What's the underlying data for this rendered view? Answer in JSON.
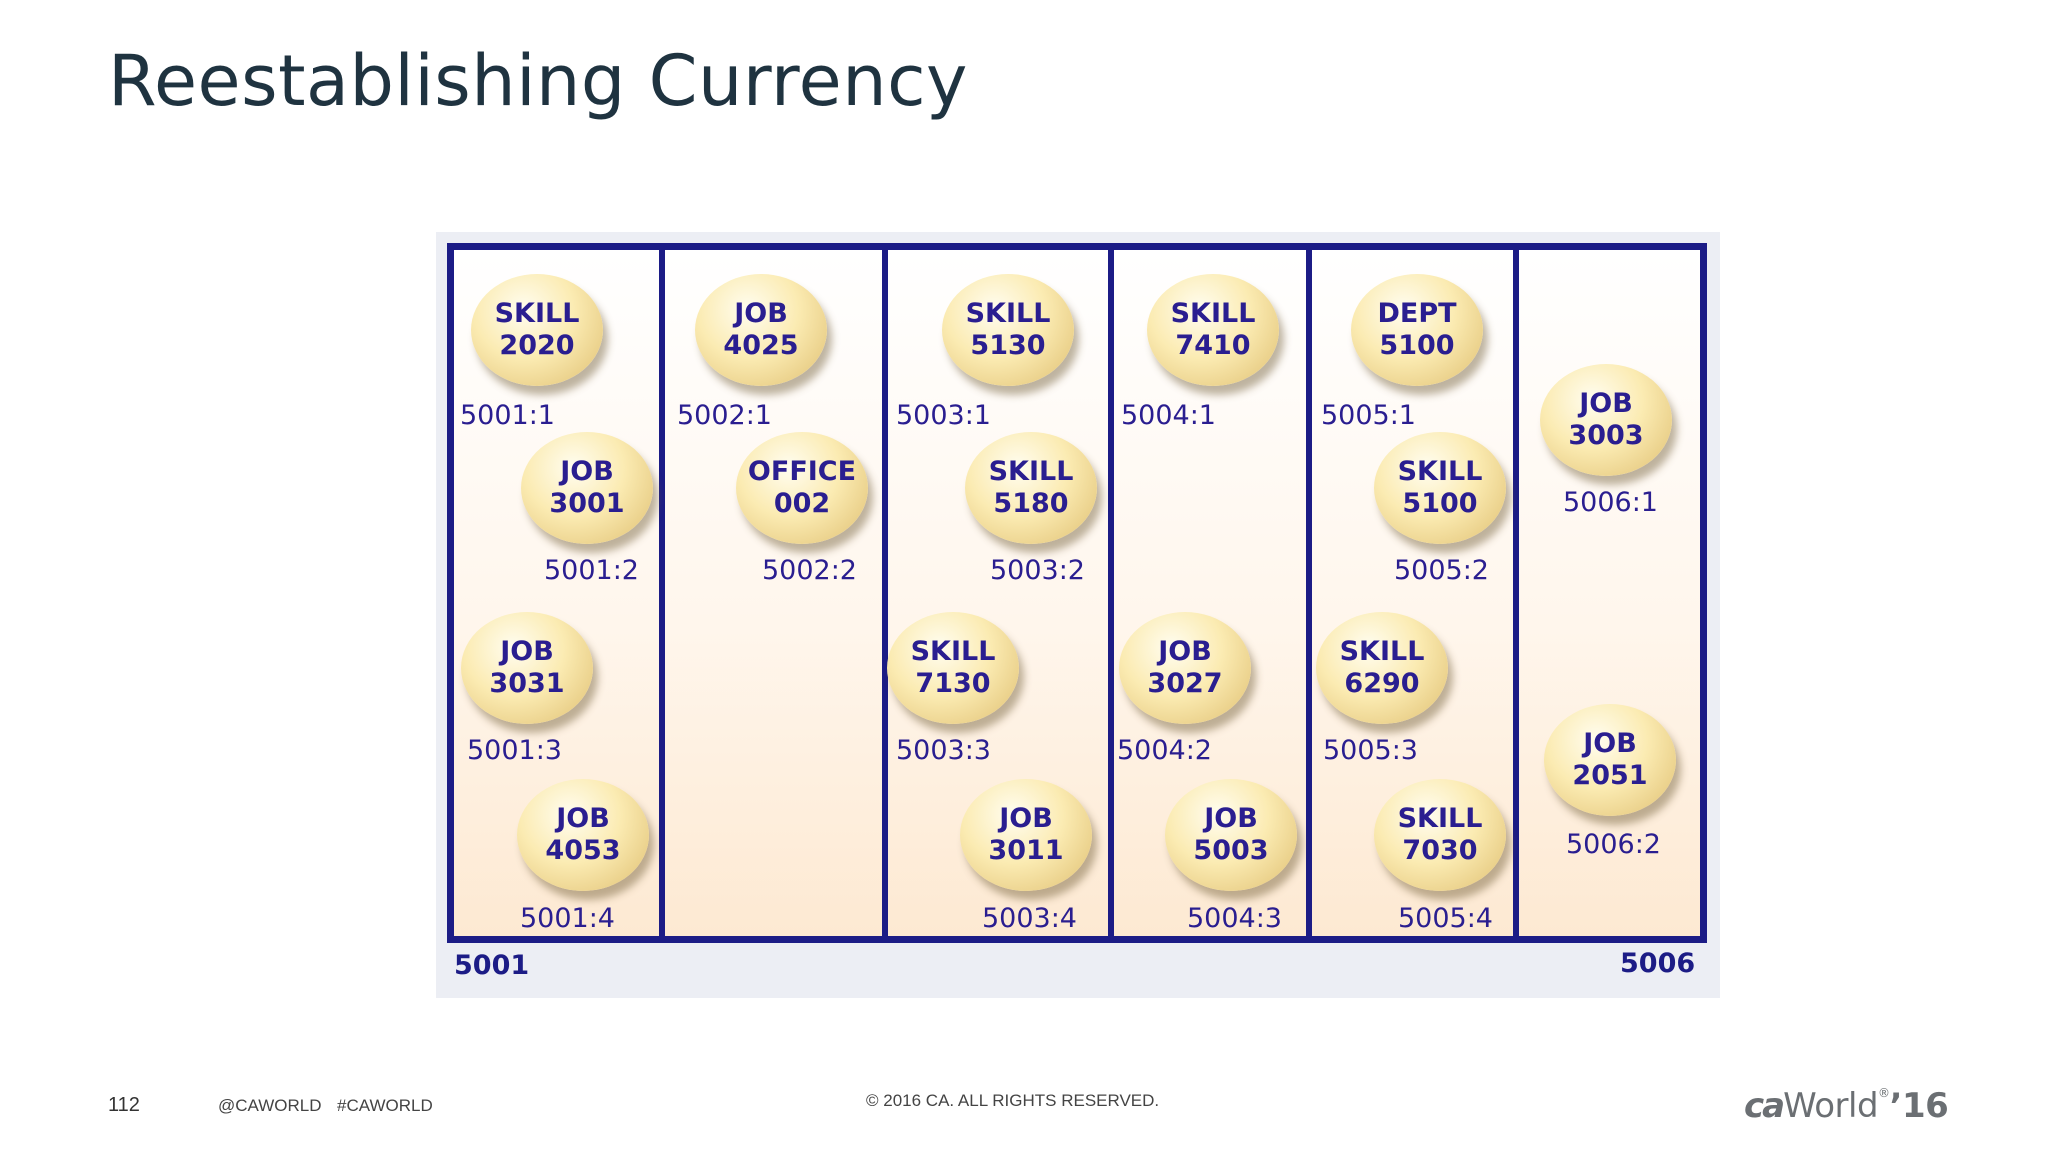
{
  "slide": {
    "title": "Reestablishing Currency",
    "page_number": "112",
    "handle": "@CAWORLD",
    "hashtag": "#CAWORLD",
    "copyright": "© 2016 CA. ALL RIGHTS RESERVED.",
    "logo": {
      "ca": "ca",
      "world": "World",
      "tm": "®",
      "year": "’16"
    }
  },
  "diagram": {
    "first_page": "5001",
    "last_page": "5006",
    "records": [
      {
        "type": "SKILL",
        "id": "2020",
        "dbkey": "5001:1"
      },
      {
        "type": "JOB",
        "id": "3001",
        "dbkey": "5001:2"
      },
      {
        "type": "JOB",
        "id": "3031",
        "dbkey": "5001:3"
      },
      {
        "type": "JOB",
        "id": "4053",
        "dbkey": "5001:4"
      },
      {
        "type": "JOB",
        "id": "4025",
        "dbkey": "5002:1"
      },
      {
        "type": "OFFICE",
        "id": "002",
        "dbkey": "5002:2"
      },
      {
        "type": "SKILL",
        "id": "5130",
        "dbkey": "5003:1"
      },
      {
        "type": "SKILL",
        "id": "5180",
        "dbkey": "5003:2"
      },
      {
        "type": "SKILL",
        "id": "7130",
        "dbkey": "5003:3"
      },
      {
        "type": "JOB",
        "id": "3011",
        "dbkey": "5003:4"
      },
      {
        "type": "SKILL",
        "id": "7410",
        "dbkey": "5004:1"
      },
      {
        "type": "JOB",
        "id": "3027",
        "dbkey": "5004:2"
      },
      {
        "type": "JOB",
        "id": "5003",
        "dbkey": "5004:3"
      },
      {
        "type": "DEPT",
        "id": "5100",
        "dbkey": "5005:1"
      },
      {
        "type": "SKILL",
        "id": "5100",
        "dbkey": "5005:2"
      },
      {
        "type": "SKILL",
        "id": "6290",
        "dbkey": "5005:3"
      },
      {
        "type": "SKILL",
        "id": "7030",
        "dbkey": "5005:4"
      },
      {
        "type": "JOB",
        "id": "3003",
        "dbkey": "5006:1"
      },
      {
        "type": "JOB",
        "id": "2051",
        "dbkey": "5006:2"
      }
    ]
  }
}
